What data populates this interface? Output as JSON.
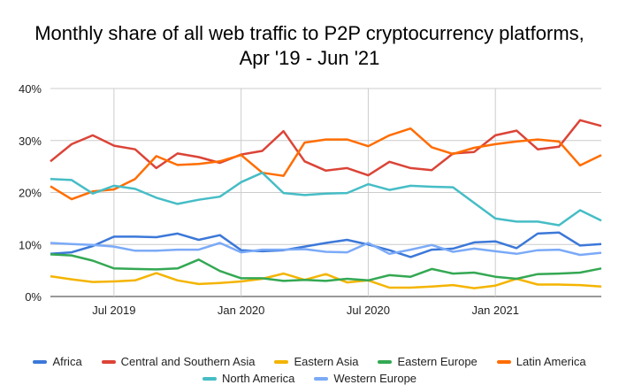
{
  "chart_data": {
    "type": "line",
    "title": "Monthly share of all web traffic to P2P cryptocurrency platforms, Apr '19 - Jun '21",
    "title_lines": [
      "Monthly share of all web traffic to P2P cryptocurrency platforms,",
      "Apr '19 - Jun '21"
    ],
    "xlabel": "",
    "ylabel": "",
    "x": [
      "2019-04",
      "2019-05",
      "2019-06",
      "2019-07",
      "2019-08",
      "2019-09",
      "2019-10",
      "2019-11",
      "2019-12",
      "2020-01",
      "2020-02",
      "2020-03",
      "2020-04",
      "2020-05",
      "2020-06",
      "2020-07",
      "2020-08",
      "2020-09",
      "2020-10",
      "2020-11",
      "2020-12",
      "2021-01",
      "2021-02",
      "2021-03",
      "2021-04",
      "2021-05",
      "2021-06"
    ],
    "x_ticks": [
      {
        "at": "2019-07",
        "label": "Jul 2019"
      },
      {
        "at": "2020-01",
        "label": "Jan 2020"
      },
      {
        "at": "2020-07",
        "label": "Jul 2020"
      },
      {
        "at": "2021-01",
        "label": "Jan 2021"
      }
    ],
    "y_ticks": [
      {
        "value": 0,
        "label": "0%"
      },
      {
        "value": 10,
        "label": "10%"
      },
      {
        "value": 20,
        "label": "20%"
      },
      {
        "value": 30,
        "label": "30%"
      },
      {
        "value": 40,
        "label": "40%"
      }
    ],
    "ylim": [
      0,
      40
    ],
    "grid": true,
    "legend_position": "bottom",
    "series": [
      {
        "name": "Africa",
        "color": "#3c78d8",
        "values": [
          8.2,
          8.5,
          9.7,
          11.5,
          11.5,
          11.4,
          12.1,
          10.9,
          11.8,
          8.9,
          8.7,
          8.9,
          9.6,
          10.3,
          10.9,
          10.0,
          8.9,
          7.6,
          9.0,
          9.2,
          10.4,
          10.6,
          9.3,
          12.1,
          12.3,
          9.8,
          10.1
        ]
      },
      {
        "name": "Central and Southern Asia",
        "color": "#db4437",
        "values": [
          26.0,
          29.3,
          31.0,
          29.0,
          28.3,
          24.7,
          27.5,
          26.8,
          25.7,
          27.3,
          28.0,
          31.8,
          26.0,
          24.2,
          24.7,
          23.3,
          25.9,
          24.7,
          24.3,
          27.5,
          27.8,
          31.0,
          31.9,
          28.3,
          28.8,
          33.9,
          32.8
        ]
      },
      {
        "name": "Eastern Asia",
        "color": "#f4b400",
        "values": [
          3.9,
          3.3,
          2.8,
          2.9,
          3.1,
          4.5,
          3.1,
          2.4,
          2.6,
          2.9,
          3.4,
          4.4,
          3.2,
          4.3,
          2.7,
          3.1,
          1.7,
          1.7,
          1.9,
          2.2,
          1.6,
          2.1,
          3.4,
          2.3,
          2.3,
          2.2,
          1.9
        ]
      },
      {
        "name": "Eastern Europe",
        "color": "#34a853",
        "values": [
          8.1,
          7.9,
          6.9,
          5.4,
          5.3,
          5.2,
          5.4,
          7.1,
          4.9,
          3.5,
          3.5,
          3.0,
          3.2,
          3.0,
          3.4,
          3.1,
          4.1,
          3.8,
          5.3,
          4.4,
          4.6,
          3.8,
          3.4,
          4.3,
          4.4,
          4.6,
          5.4
        ]
      },
      {
        "name": "Latin America",
        "color": "#ff6d01",
        "values": [
          21.2,
          18.7,
          20.2,
          20.6,
          22.6,
          27.0,
          25.3,
          25.5,
          26.0,
          27.2,
          23.8,
          23.2,
          29.6,
          30.2,
          30.2,
          28.9,
          31.0,
          32.3,
          28.7,
          27.4,
          28.6,
          29.3,
          29.8,
          30.2,
          29.8,
          25.2,
          27.2
        ]
      },
      {
        "name": "North America",
        "color": "#46bdc6",
        "values": [
          22.6,
          22.4,
          19.8,
          21.3,
          20.7,
          19.0,
          17.8,
          18.6,
          19.2,
          22.0,
          23.8,
          19.9,
          19.5,
          19.8,
          19.9,
          21.6,
          20.5,
          21.3,
          21.1,
          21.0,
          18.0,
          15.0,
          14.4,
          14.4,
          13.7,
          16.6,
          14.6
        ]
      },
      {
        "name": "Western Europe",
        "color": "#7baaf7",
        "values": [
          10.3,
          10.1,
          9.9,
          9.6,
          8.8,
          8.8,
          9.0,
          9.0,
          10.3,
          8.5,
          9.0,
          9.0,
          9.1,
          8.6,
          8.5,
          10.3,
          8.2,
          9.0,
          9.9,
          8.6,
          9.2,
          8.7,
          8.2,
          8.9,
          9.0,
          8.0,
          8.4
        ]
      }
    ]
  }
}
